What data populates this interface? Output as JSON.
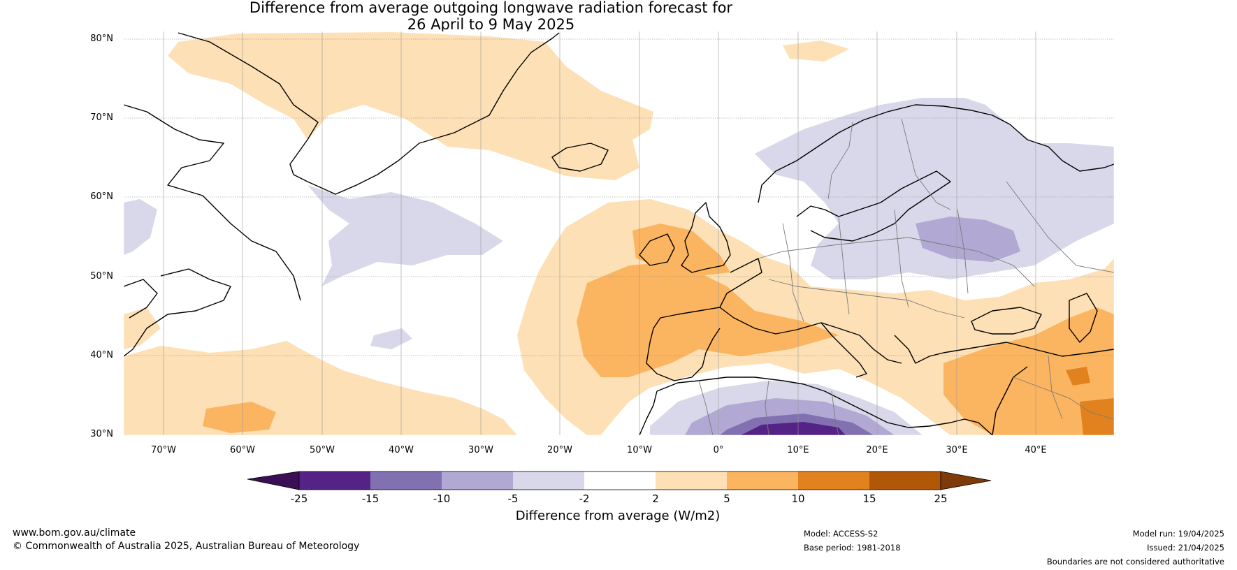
{
  "title_line1": "Difference from average outgoing longwave radiation forecast for",
  "title_line2": "26 April to 9 May 2025",
  "lat_labels": [
    "80°N",
    "70°N",
    "60°N",
    "50°N",
    "40°N",
    "30°N"
  ],
  "lon_labels": [
    "70°W",
    "60°W",
    "50°W",
    "40°W",
    "30°W",
    "20°W",
    "10°W",
    "0°",
    "10°E",
    "20°E",
    "30°E",
    "40°E"
  ],
  "colorbar": {
    "ticks": [
      "-25",
      "-15",
      "-10",
      "-5",
      "-2",
      "2",
      "5",
      "10",
      "15",
      "25"
    ],
    "label": "Difference from average (W/m2)",
    "colors": {
      "below_-25": "#3b0f55",
      "-25_-15": "#552285",
      "-15_-10": "#8271b0",
      "-10_-5": "#b1a9d3",
      "-5_-2": "#d8d8ea",
      "-2_2": "#ffffff",
      "2_5": "#fde0b5",
      "5_10": "#fbb560",
      "10_15": "#e1821f",
      "15_25": "#b15708",
      "above_25": "#7e3a08"
    }
  },
  "footer": {
    "website": "www.bom.gov.au/climate",
    "copyright": "© Commonwealth of Australia 2025, Australian Bureau of Meteorology",
    "model": "Model: ACCESS-S2",
    "base_period": "Base period: 1981-2018",
    "model_run": "Model run: 19/04/2025",
    "issued": "Issued: 21/04/2025",
    "disclaimer": "Boundaries are not considered authoritative"
  }
}
